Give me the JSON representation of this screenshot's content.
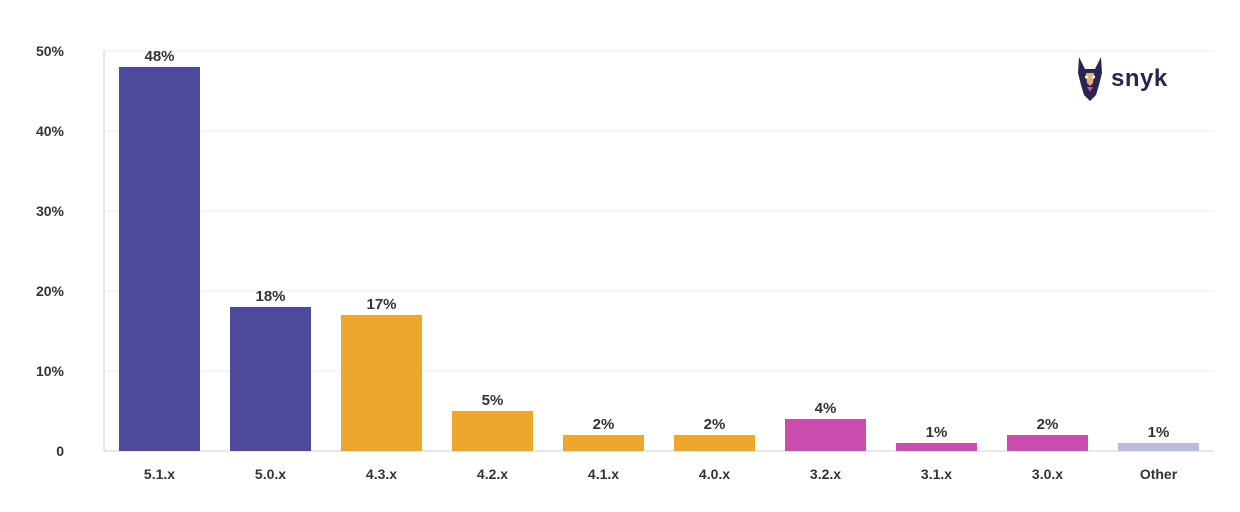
{
  "chart_data": {
    "type": "bar",
    "categories": [
      "5.1.x",
      "5.0.x",
      "4.3.x",
      "4.2.x",
      "4.1.x",
      "4.0.x",
      "3.2.x",
      "3.1.x",
      "3.0.x",
      "Other"
    ],
    "values": [
      48,
      18,
      17,
      5,
      2,
      2,
      4,
      1,
      2,
      1
    ],
    "data_labels": [
      "48%",
      "18%",
      "17%",
      "5%",
      "2%",
      "2%",
      "4%",
      "1%",
      "2%",
      "1%"
    ],
    "bar_colors": [
      "#504a9c",
      "#504a9c",
      "#eea72d",
      "#eea72d",
      "#eea72d",
      "#eea72d",
      "#c94ead",
      "#c94ead",
      "#c94ead",
      "#b9bcdc"
    ],
    "y_ticks": [
      0,
      10,
      20,
      30,
      40,
      50
    ],
    "y_tick_labels": [
      "0",
      "10%",
      "20%",
      "30%",
      "40%",
      "50%"
    ],
    "ylim": [
      0,
      50
    ],
    "grid": true,
    "title": "",
    "xlabel": "",
    "ylabel": ""
  },
  "logo": {
    "text": "snyk",
    "icon": "doberman-dog-icon",
    "color": "#2b2450"
  }
}
